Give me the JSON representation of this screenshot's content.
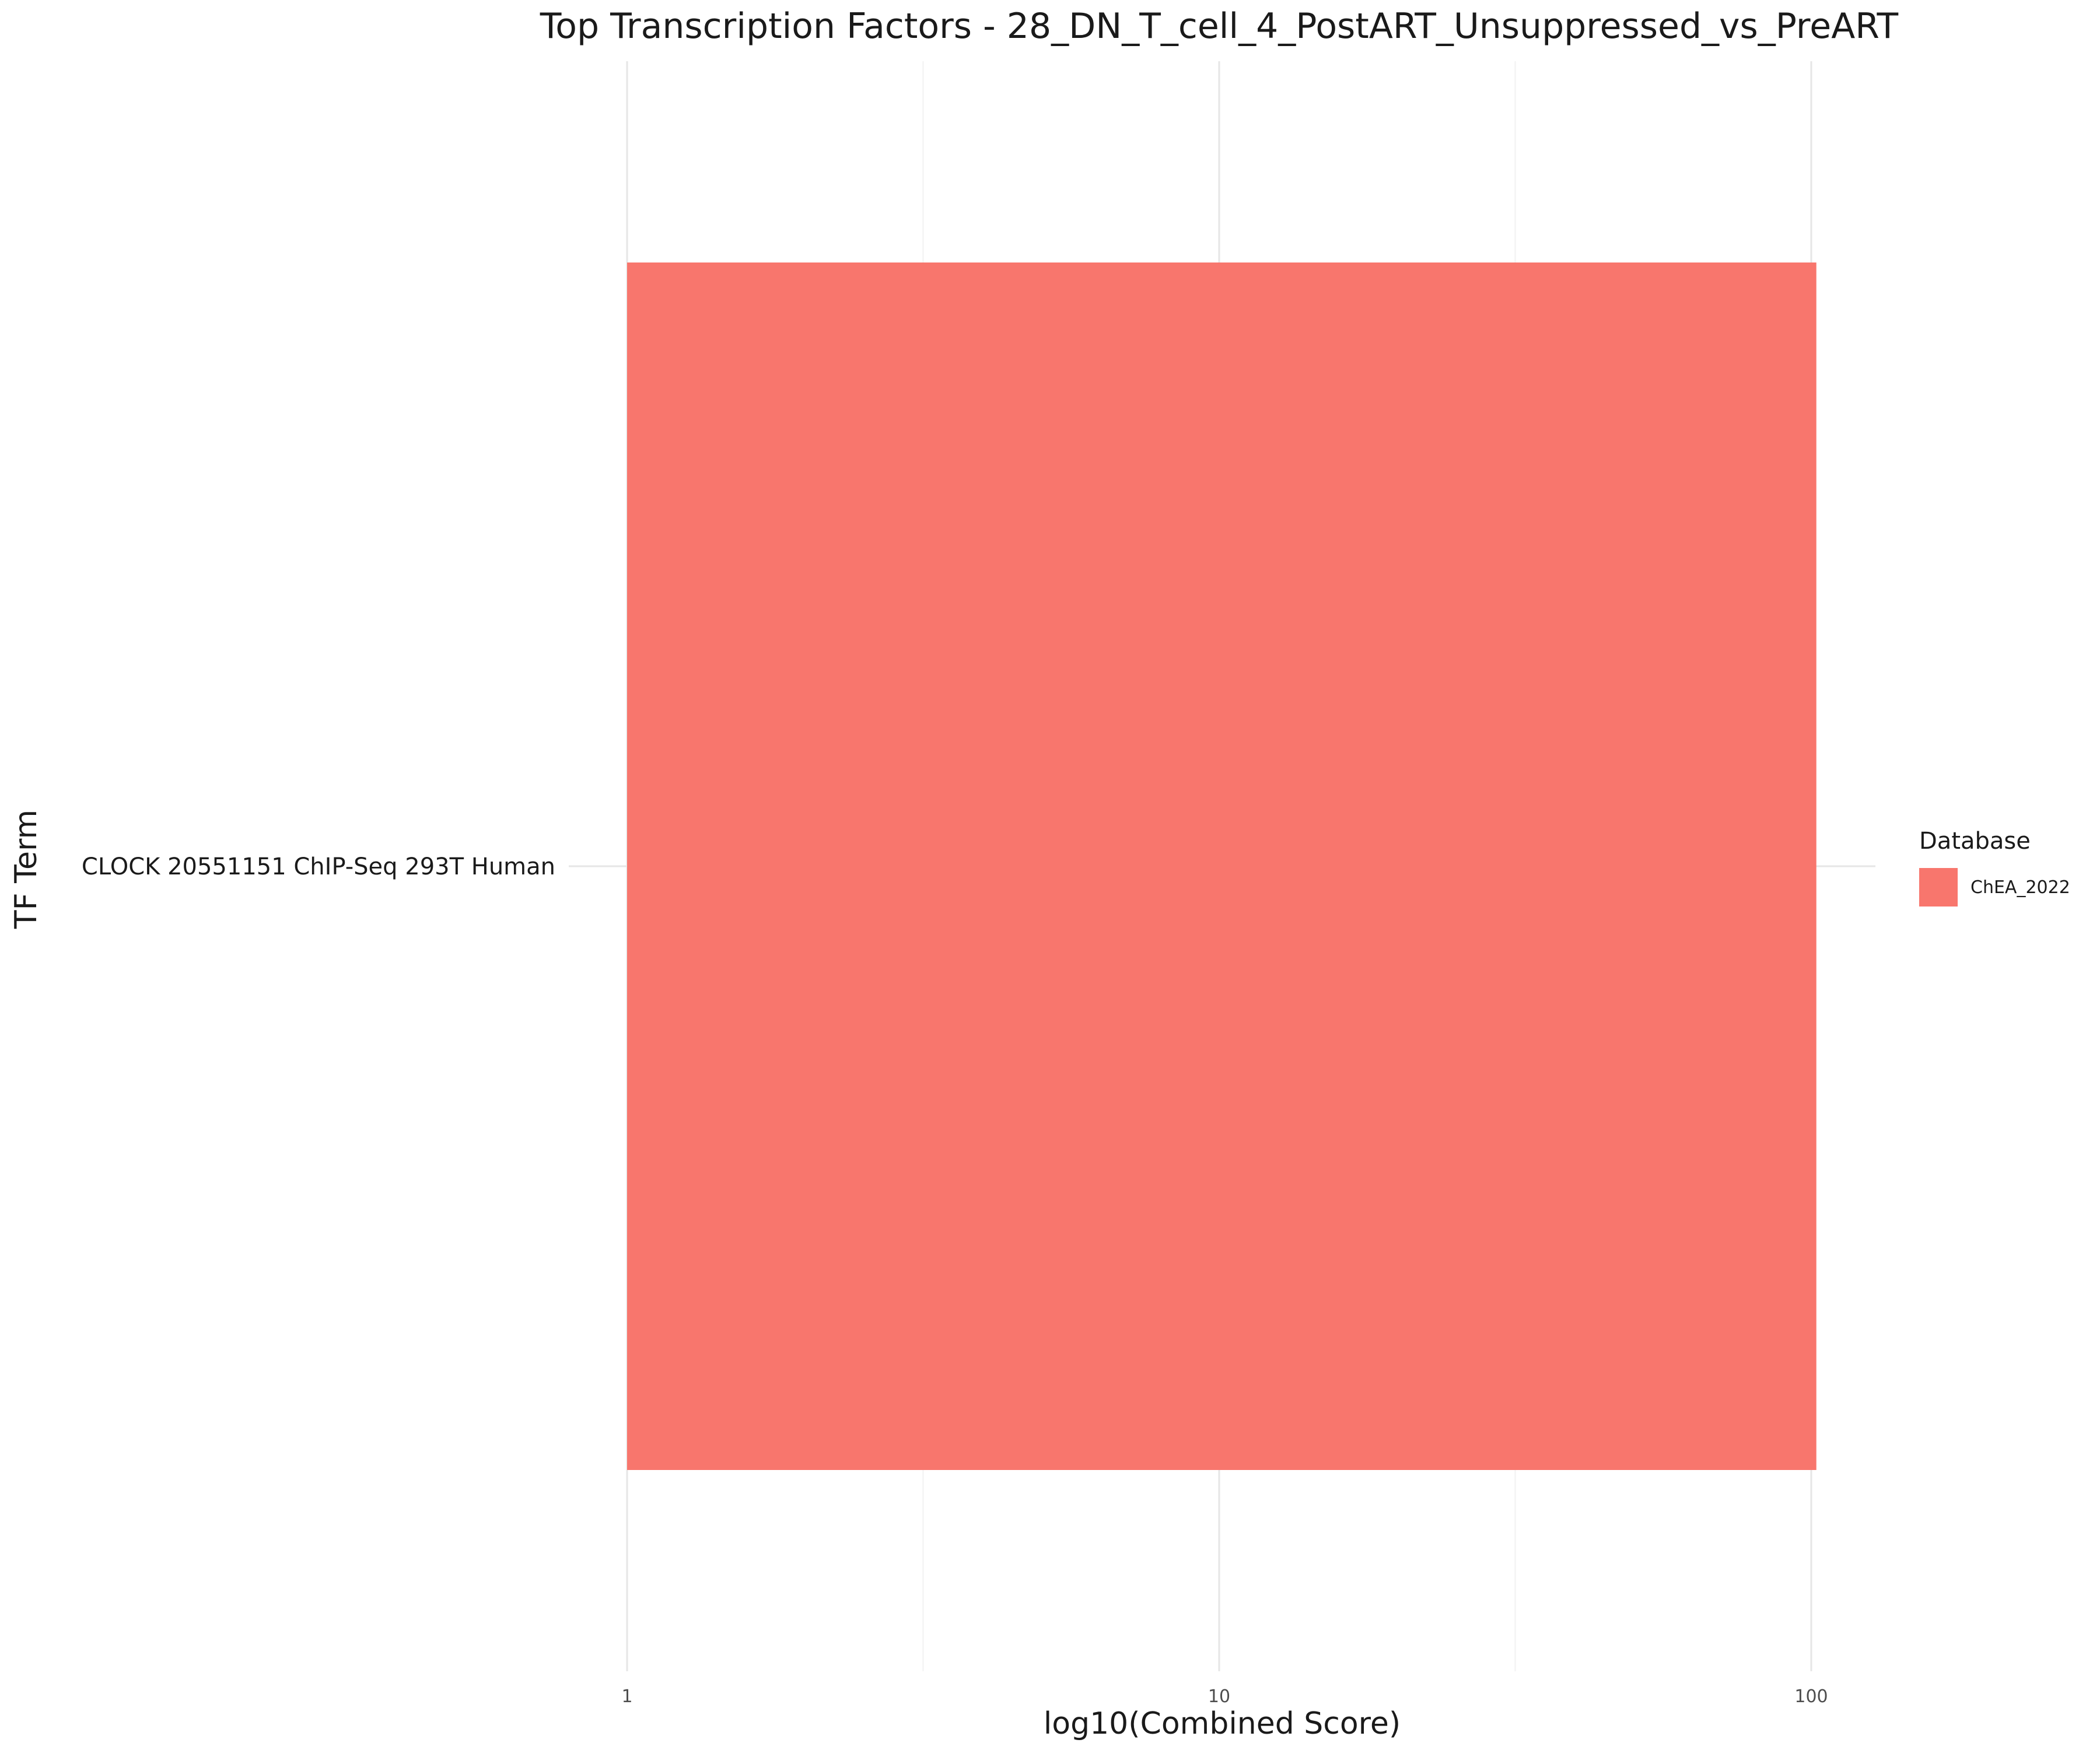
{
  "chart_data": {
    "type": "bar",
    "orientation": "horizontal",
    "title": "Top Transcription Factors - 28_DN_T_cell_4_PostART_Unsuppressed_vs_PreART",
    "xlabel": "log10(Combined Score)",
    "ylabel": "TF Term",
    "x_scale": "log10",
    "xlim": [
      1,
      102
    ],
    "x_ticks": [
      1,
      10,
      100
    ],
    "x_tick_labels": [
      "1",
      "10",
      "100"
    ],
    "grid": true,
    "categories": [
      "CLOCK 20551151 ChIP-Seq 293T Human"
    ],
    "series": [
      {
        "name": "ChEA_2022",
        "values": [
          102
        ],
        "color": "#F8766D"
      }
    ],
    "legend": {
      "title": "Database",
      "placement": "right",
      "entries": [
        {
          "label": "ChEA_2022",
          "color": "#F8766D"
        }
      ]
    }
  }
}
